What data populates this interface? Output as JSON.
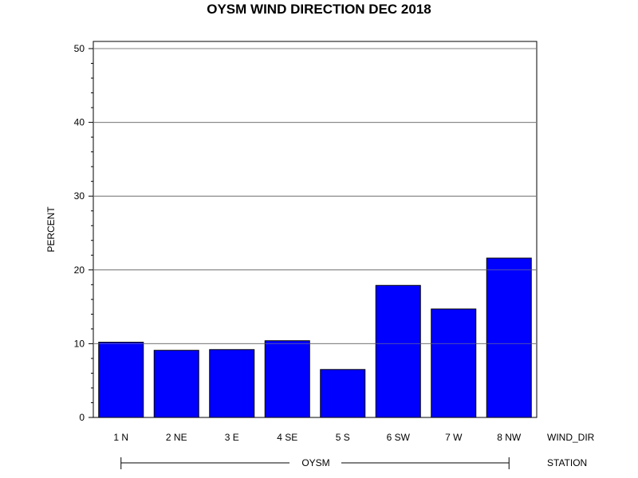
{
  "chart_data": {
    "type": "bar",
    "title": "OYSM WIND DIRECTION DEC 2018",
    "ylabel": "PERCENT",
    "xlabel": "WIND_DIR",
    "group_axis_label": "STATION",
    "group_label": "OYSM",
    "categories": [
      "1 N",
      "2 NE",
      "3 E",
      "4 SE",
      "5 S",
      "6 SW",
      "7 W",
      "8 NW"
    ],
    "values": [
      10.2,
      9.1,
      9.2,
      10.4,
      6.5,
      17.9,
      14.7,
      21.6
    ],
    "ylim": [
      0,
      50
    ],
    "yticks": [
      0,
      10,
      20,
      30,
      40,
      50
    ],
    "grid": true,
    "bar_color": "#0000ff",
    "bar_edge_color": "#000000",
    "grid_color": "#808080"
  }
}
